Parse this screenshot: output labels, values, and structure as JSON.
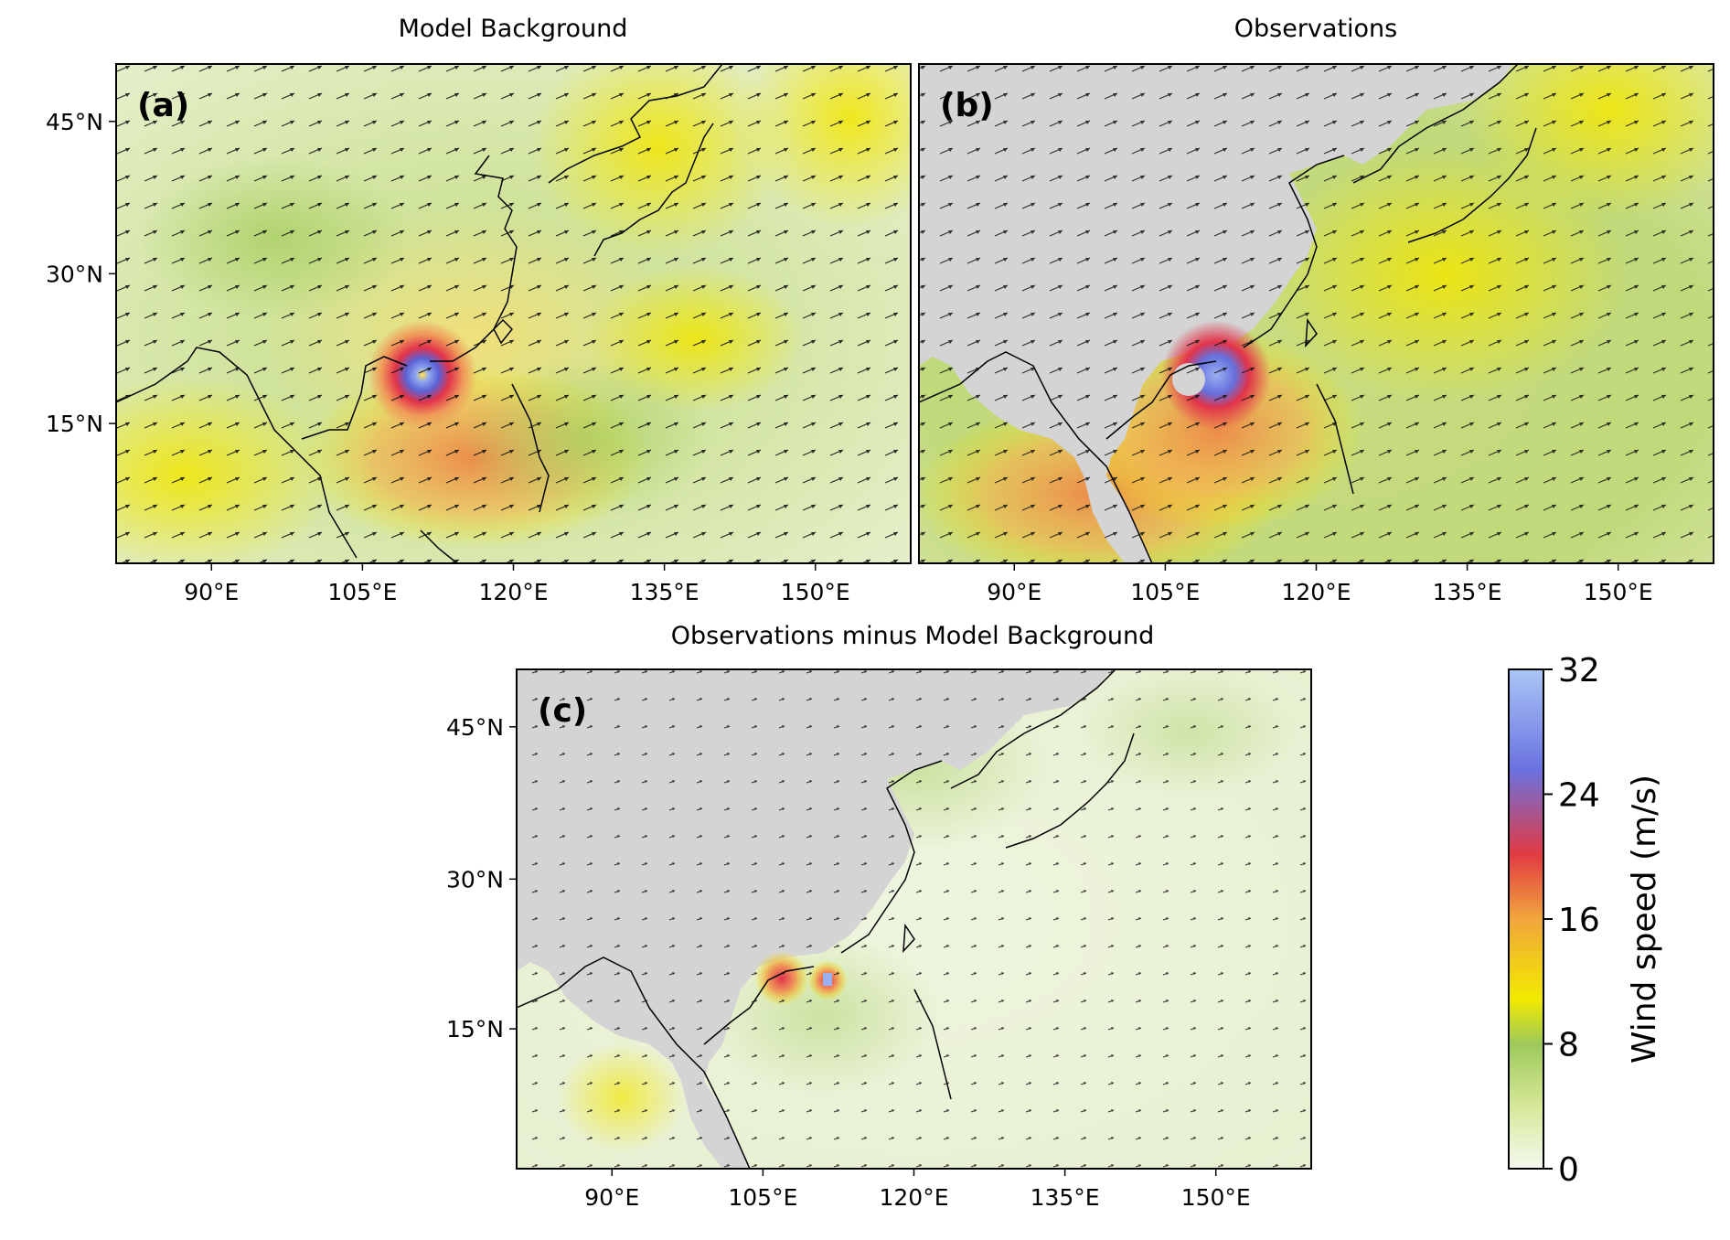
{
  "panels": [
    {
      "id": "a",
      "label": "(a)",
      "title": "Model Background"
    },
    {
      "id": "b",
      "label": "(b)",
      "title": "Observations"
    },
    {
      "id": "c",
      "label": "(c)",
      "title": "Observations minus Model Background"
    }
  ],
  "lat_ticks": [
    "45°N",
    "30°N",
    "15°N"
  ],
  "lon_ticks": [
    "90°E",
    "105°E",
    "120°E",
    "135°E",
    "150°E"
  ],
  "colorbar": {
    "label": "Wind speed (m/s)",
    "ticks": [
      "32",
      "24",
      "16",
      "8",
      "0"
    ],
    "stops": [
      "#f4f9ef",
      "#d8ea9c",
      "#9ec95a",
      "#f2ea00",
      "#f0a63c",
      "#e23a43",
      "#6a72e0",
      "#aac6f6"
    ]
  },
  "colors": {
    "land_no_data": "#d4d4d4",
    "coast": "#000000"
  }
}
